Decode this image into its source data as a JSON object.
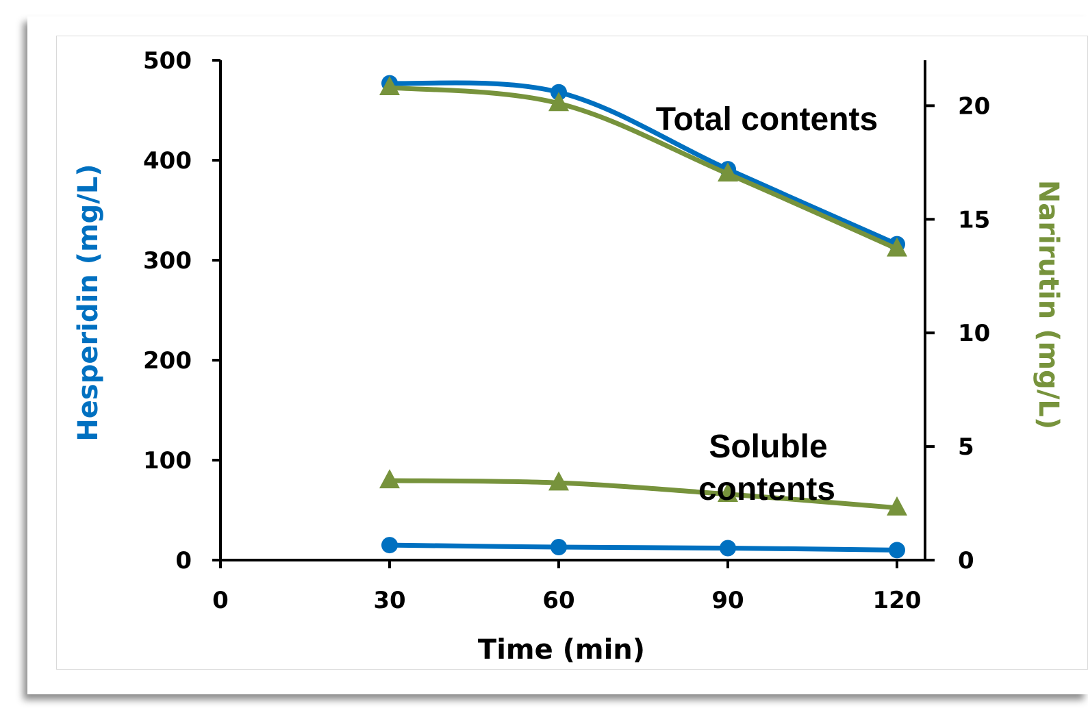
{
  "chart_data": {
    "type": "line",
    "xlabel": "Time (min)",
    "ylabel": "Hesperidin (mg/L)",
    "y2label": "Narirutin (mg/L)",
    "xlim": [
      0,
      125
    ],
    "ylim": [
      0,
      500
    ],
    "y2lim": [
      0,
      22
    ],
    "x_ticks": [
      "0",
      "30",
      "60",
      "90",
      "120"
    ],
    "y_ticks": [
      "0",
      "100",
      "200",
      "300",
      "400",
      "500"
    ],
    "y2_ticks": [
      "0",
      "5",
      "10",
      "15",
      "20"
    ],
    "grid": false,
    "legend": "none",
    "annotations": {
      "total": "Total contents",
      "soluble_line1": "Soluble",
      "soluble_line2": "contents"
    },
    "colors": {
      "hesperidin": "#0070C0",
      "narirutin": "#77933C"
    },
    "series": [
      {
        "axis": "left",
        "marker": "circle",
        "x": [
          30,
          60,
          90,
          120
        ],
        "y": [
          477,
          468,
          391,
          316
        ],
        "group": "total"
      },
      {
        "axis": "right",
        "marker": "triangle",
        "x": [
          30,
          60,
          90,
          120
        ],
        "y": [
          20.8,
          20.1,
          17.0,
          13.7
        ],
        "group": "total"
      },
      {
        "axis": "right",
        "marker": "triangle",
        "x": [
          30,
          60,
          90,
          120
        ],
        "y": [
          3.5,
          3.4,
          2.9,
          2.3
        ],
        "group": "soluble"
      },
      {
        "axis": "left",
        "marker": "circle",
        "x": [
          30,
          60,
          90,
          120
        ],
        "y": [
          15,
          13,
          12,
          10
        ],
        "group": "soluble"
      }
    ]
  }
}
